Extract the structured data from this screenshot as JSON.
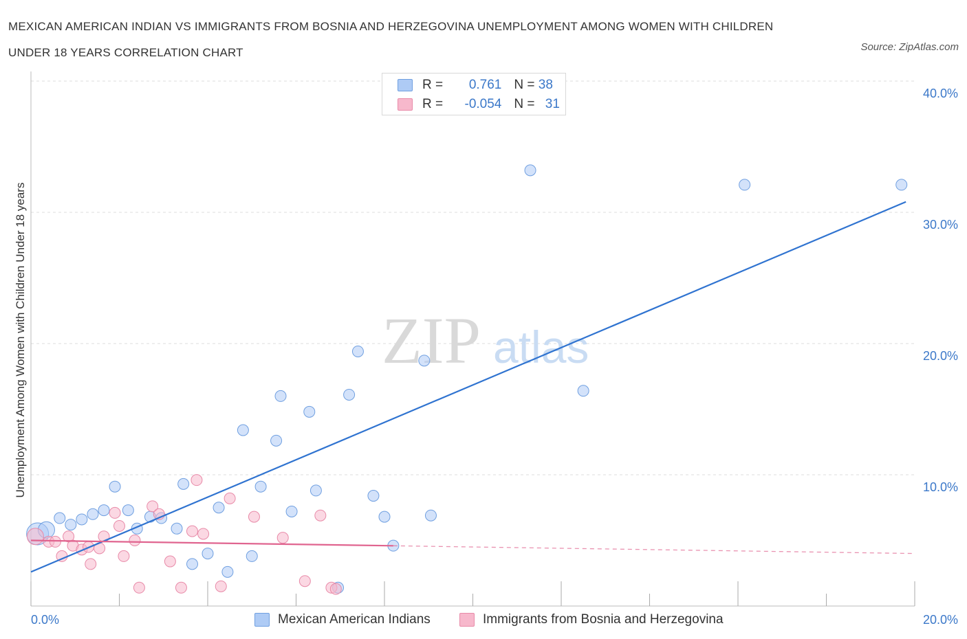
{
  "title": "MEXICAN AMERICAN INDIAN VS IMMIGRANTS FROM BOSNIA AND HERZEGOVINA UNEMPLOYMENT AMONG WOMEN WITH CHILDREN UNDER 18 YEARS CORRELATION CHART",
  "source": "Source: ZipAtlas.com",
  "watermark": {
    "zip": "ZIP",
    "atlas": "atlas"
  },
  "legend": {
    "rows": [
      {
        "r_label": "R = ",
        "r_value": "0.761",
        "n_label": "N = ",
        "n_value": "38",
        "color": "#aecbf5"
      },
      {
        "r_label": "R = ",
        "r_value": "-0.054",
        "n_label": "N = ",
        "n_value": "31",
        "color": "#f7b8cc"
      }
    ]
  },
  "bottom_legend": [
    {
      "label": "Mexican American Indians",
      "color": "#aecbf5"
    },
    {
      "label": "Immigrants from Bosnia and Herzegovina",
      "color": "#f7b8cc"
    }
  ],
  "chart_data": {
    "type": "scatter",
    "title": "MEXICAN AMERICAN INDIAN VS IMMIGRANTS FROM BOSNIA AND HERZEGOVINA UNEMPLOYMENT AMONG WOMEN WITH CHILDREN UNDER 18 YEARS CORRELATION CHART",
    "xlabel": "",
    "ylabel": "Unemployment Among Women with Children Under 18 years",
    "xlim": [
      0,
      20
    ],
    "ylim": [
      0,
      40
    ],
    "x_tick_labels": [
      "0.0%",
      "20.0%"
    ],
    "y_ticks": [
      10,
      20,
      30,
      40
    ],
    "y_tick_labels": [
      "10.0%",
      "20.0%",
      "30.0%",
      "40.0%"
    ],
    "grid": true,
    "series": [
      {
        "name": "Mexican American Indians",
        "color": "#aecbf5",
        "stroke": "#6f9fe0",
        "line_color": "#2f73d0",
        "trend": {
          "x": [
            0,
            19.8
          ],
          "y": [
            2.6,
            30.8
          ],
          "solid_until": 19.8
        },
        "points": [
          {
            "x": 0.15,
            "y": 5.5,
            "s": 3
          },
          {
            "x": 0.35,
            "y": 5.8,
            "s": 2
          },
          {
            "x": 0.65,
            "y": 6.7,
            "s": 1
          },
          {
            "x": 0.9,
            "y": 6.2,
            "s": 1
          },
          {
            "x": 1.15,
            "y": 6.6,
            "s": 1
          },
          {
            "x": 1.4,
            "y": 7.0,
            "s": 1
          },
          {
            "x": 1.65,
            "y": 7.3,
            "s": 1
          },
          {
            "x": 1.9,
            "y": 9.1,
            "s": 1
          },
          {
            "x": 2.2,
            "y": 7.3,
            "s": 1
          },
          {
            "x": 2.4,
            "y": 5.9,
            "s": 1
          },
          {
            "x": 2.7,
            "y": 6.8,
            "s": 1
          },
          {
            "x": 2.95,
            "y": 6.7,
            "s": 1
          },
          {
            "x": 3.3,
            "y": 5.9,
            "s": 1
          },
          {
            "x": 3.45,
            "y": 9.3,
            "s": 1
          },
          {
            "x": 3.65,
            "y": 3.2,
            "s": 1
          },
          {
            "x": 4.0,
            "y": 4.0,
            "s": 1
          },
          {
            "x": 4.25,
            "y": 7.5,
            "s": 1
          },
          {
            "x": 4.45,
            "y": 2.6,
            "s": 1
          },
          {
            "x": 4.8,
            "y": 13.4,
            "s": 1
          },
          {
            "x": 5.0,
            "y": 3.8,
            "s": 1
          },
          {
            "x": 5.2,
            "y": 9.1,
            "s": 1
          },
          {
            "x": 5.55,
            "y": 12.6,
            "s": 1
          },
          {
            "x": 5.65,
            "y": 16.0,
            "s": 1
          },
          {
            "x": 5.9,
            "y": 7.2,
            "s": 1
          },
          {
            "x": 6.3,
            "y": 14.8,
            "s": 1
          },
          {
            "x": 6.45,
            "y": 8.8,
            "s": 1
          },
          {
            "x": 6.95,
            "y": 1.4,
            "s": 1
          },
          {
            "x": 7.2,
            "y": 16.1,
            "s": 1
          },
          {
            "x": 7.4,
            "y": 19.4,
            "s": 1
          },
          {
            "x": 7.75,
            "y": 8.4,
            "s": 1
          },
          {
            "x": 8.0,
            "y": 6.8,
            "s": 1
          },
          {
            "x": 8.2,
            "y": 4.6,
            "s": 1
          },
          {
            "x": 8.9,
            "y": 18.7,
            "s": 1
          },
          {
            "x": 9.05,
            "y": 6.9,
            "s": 1
          },
          {
            "x": 11.3,
            "y": 33.2,
            "s": 1
          },
          {
            "x": 12.5,
            "y": 16.4,
            "s": 1
          },
          {
            "x": 16.15,
            "y": 32.1,
            "s": 1
          },
          {
            "x": 19.7,
            "y": 32.1,
            "s": 1
          }
        ]
      },
      {
        "name": "Immigrants from Bosnia and Herzegovina",
        "color": "#f7b8cc",
        "stroke": "#e88aa8",
        "line_color": "#e0648f",
        "trend": {
          "x": [
            0,
            20
          ],
          "y": [
            5.0,
            4.0
          ],
          "solid_until": 8.2
        },
        "points": [
          {
            "x": 0.1,
            "y": 5.3,
            "s": 2
          },
          {
            "x": 0.4,
            "y": 4.9,
            "s": 1
          },
          {
            "x": 0.55,
            "y": 4.9,
            "s": 1
          },
          {
            "x": 0.7,
            "y": 3.8,
            "s": 1
          },
          {
            "x": 0.85,
            "y": 5.3,
            "s": 1
          },
          {
            "x": 0.95,
            "y": 4.6,
            "s": 1
          },
          {
            "x": 1.15,
            "y": 4.3,
            "s": 1
          },
          {
            "x": 1.3,
            "y": 4.5,
            "s": 1
          },
          {
            "x": 1.35,
            "y": 3.2,
            "s": 1
          },
          {
            "x": 1.55,
            "y": 4.4,
            "s": 1
          },
          {
            "x": 1.65,
            "y": 5.3,
            "s": 1
          },
          {
            "x": 1.9,
            "y": 7.1,
            "s": 1
          },
          {
            "x": 2.0,
            "y": 6.1,
            "s": 1
          },
          {
            "x": 2.1,
            "y": 3.8,
            "s": 1
          },
          {
            "x": 2.35,
            "y": 5.0,
            "s": 1
          },
          {
            "x": 2.45,
            "y": 1.4,
            "s": 1
          },
          {
            "x": 2.75,
            "y": 7.6,
            "s": 1
          },
          {
            "x": 2.9,
            "y": 7.0,
            "s": 1
          },
          {
            "x": 3.15,
            "y": 3.4,
            "s": 1
          },
          {
            "x": 3.4,
            "y": 1.4,
            "s": 1
          },
          {
            "x": 3.65,
            "y": 5.7,
            "s": 1
          },
          {
            "x": 3.75,
            "y": 9.6,
            "s": 1
          },
          {
            "x": 3.9,
            "y": 5.5,
            "s": 1
          },
          {
            "x": 4.3,
            "y": 1.5,
            "s": 1
          },
          {
            "x": 4.5,
            "y": 8.2,
            "s": 1
          },
          {
            "x": 5.05,
            "y": 6.8,
            "s": 1
          },
          {
            "x": 5.7,
            "y": 5.2,
            "s": 1
          },
          {
            "x": 6.2,
            "y": 1.9,
            "s": 1
          },
          {
            "x": 6.55,
            "y": 6.9,
            "s": 1
          },
          {
            "x": 6.8,
            "y": 1.4,
            "s": 1
          },
          {
            "x": 6.9,
            "y": 1.3,
            "s": 1
          }
        ]
      }
    ]
  }
}
